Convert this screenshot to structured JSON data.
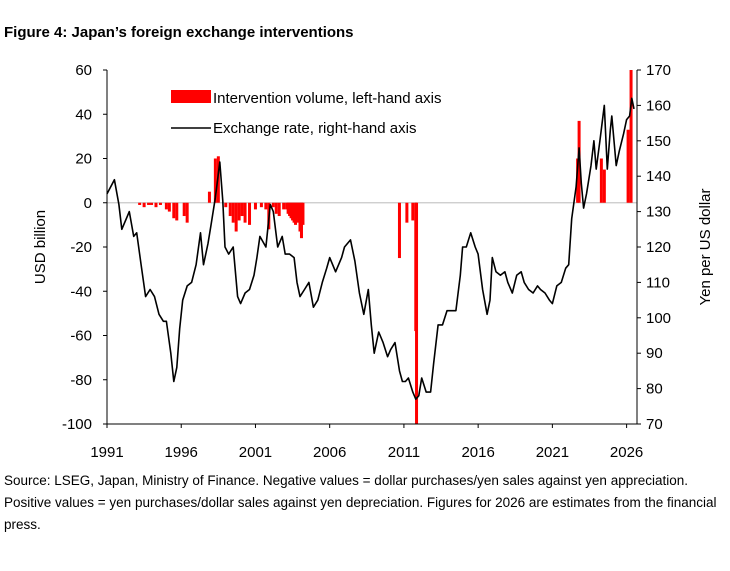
{
  "figure_title": "Figure 4: Japan’s foreign exchange interventions",
  "source_note": "Source: LSEG, Japan, Ministry of Finance. Negative values = dollar purchases/yen sales against yen appreciation. Positive values = yen purchases/dollar sales against yen depreciation. Figures for 2026 are estimates from the financial press.",
  "chart_data": {
    "type": "bar",
    "ylabel_left": "USD billion",
    "ylabel_right": "Yen per US dollar",
    "ylim_left": [
      -100,
      60
    ],
    "ylim_right": [
      70,
      170
    ],
    "xlim": [
      1991,
      2026.7
    ],
    "yticks_left": [
      "60",
      "40",
      "20",
      "0",
      "-20",
      "-40",
      "-60",
      "-80",
      "-100"
    ],
    "yticks_right": [
      "170",
      "160",
      "150",
      "140",
      "130",
      "120",
      "110",
      "100",
      "90",
      "80",
      "70"
    ],
    "xticks": [
      "1991",
      "1996",
      "2001",
      "2006",
      "2011",
      "2016",
      "2021",
      "2026"
    ],
    "legend_placement": "top-left",
    "legend": {
      "bars": "Intervention volume, left-hand axis",
      "line": "Exchange rate, right-hand axis"
    },
    "colors": {
      "bars": "#ff0000",
      "line": "#000000",
      "zero_line": "#c8c8c8"
    },
    "series": [
      {
        "name": "Intervention volume, left-hand axis",
        "type": "bar",
        "points": [
          [
            1993.2,
            -1
          ],
          [
            1993.5,
            -2
          ],
          [
            1993.8,
            -1
          ],
          [
            1994.0,
            -1
          ],
          [
            1994.3,
            -2
          ],
          [
            1994.6,
            -1
          ],
          [
            1995.0,
            -3
          ],
          [
            1995.2,
            -4
          ],
          [
            1995.5,
            -7
          ],
          [
            1995.7,
            -8
          ],
          [
            1996.2,
            -6
          ],
          [
            1996.4,
            -9
          ],
          [
            1997.9,
            5
          ],
          [
            1998.3,
            20
          ],
          [
            1998.5,
            21
          ],
          [
            1999.0,
            -2
          ],
          [
            1999.3,
            -6
          ],
          [
            1999.5,
            -9
          ],
          [
            1999.7,
            -13
          ],
          [
            1999.9,
            -8
          ],
          [
            2000.1,
            -6
          ],
          [
            2000.3,
            -9
          ],
          [
            2000.6,
            -10
          ],
          [
            2001.0,
            -3
          ],
          [
            2001.4,
            -2
          ],
          [
            2001.7,
            -3
          ],
          [
            2001.9,
            -12
          ],
          [
            2002.2,
            -2
          ],
          [
            2002.4,
            -5
          ],
          [
            2002.6,
            -6
          ],
          [
            2002.9,
            -3
          ],
          [
            2003.1,
            -3
          ],
          [
            2003.2,
            -5
          ],
          [
            2003.3,
            -6
          ],
          [
            2003.4,
            -7
          ],
          [
            2003.5,
            -8
          ],
          [
            2003.6,
            -9
          ],
          [
            2003.7,
            -10
          ],
          [
            2003.8,
            -7
          ],
          [
            2003.9,
            -9
          ],
          [
            2004.0,
            -13
          ],
          [
            2004.1,
            -16
          ],
          [
            2004.2,
            -10
          ],
          [
            2010.7,
            -25
          ],
          [
            2011.2,
            -9
          ],
          [
            2011.6,
            -8
          ],
          [
            2011.8,
            -58
          ],
          [
            2011.85,
            -100
          ],
          [
            2022.7,
            20
          ],
          [
            2022.8,
            37
          ],
          [
            2024.3,
            20
          ],
          [
            2024.5,
            15
          ],
          [
            2026.1,
            33
          ],
          [
            2026.3,
            60
          ]
        ]
      },
      {
        "name": "Exchange rate, right-hand axis",
        "type": "line",
        "axis": "right",
        "points": [
          [
            1991.0,
            135
          ],
          [
            1991.5,
            139
          ],
          [
            1991.8,
            132
          ],
          [
            1992.0,
            125
          ],
          [
            1992.5,
            130
          ],
          [
            1992.8,
            123
          ],
          [
            1993.0,
            124
          ],
          [
            1993.3,
            115
          ],
          [
            1993.6,
            106
          ],
          [
            1993.9,
            108
          ],
          [
            1994.2,
            106
          ],
          [
            1994.5,
            101
          ],
          [
            1994.8,
            99
          ],
          [
            1995.0,
            99
          ],
          [
            1995.3,
            90
          ],
          [
            1995.5,
            82
          ],
          [
            1995.7,
            86
          ],
          [
            1995.9,
            97
          ],
          [
            1996.1,
            105
          ],
          [
            1996.4,
            109
          ],
          [
            1996.7,
            110
          ],
          [
            1997.0,
            115
          ],
          [
            1997.3,
            124
          ],
          [
            1997.5,
            115
          ],
          [
            1997.8,
            121
          ],
          [
            1998.0,
            126
          ],
          [
            1998.3,
            134
          ],
          [
            1998.6,
            144
          ],
          [
            1998.8,
            133
          ],
          [
            1998.95,
            120
          ],
          [
            1999.2,
            118
          ],
          [
            1999.5,
            120
          ],
          [
            1999.8,
            106
          ],
          [
            2000.0,
            104
          ],
          [
            2000.3,
            107
          ],
          [
            2000.6,
            108
          ],
          [
            2000.9,
            112
          ],
          [
            2001.1,
            117
          ],
          [
            2001.3,
            123
          ],
          [
            2001.7,
            120
          ],
          [
            2002.0,
            132
          ],
          [
            2002.2,
            130
          ],
          [
            2002.5,
            120
          ],
          [
            2002.8,
            123
          ],
          [
            2003.0,
            118
          ],
          [
            2003.3,
            118
          ],
          [
            2003.6,
            117
          ],
          [
            2003.8,
            110
          ],
          [
            2004.0,
            106
          ],
          [
            2004.3,
            108
          ],
          [
            2004.6,
            110
          ],
          [
            2004.9,
            103
          ],
          [
            2005.2,
            105
          ],
          [
            2005.5,
            110
          ],
          [
            2005.8,
            114
          ],
          [
            2006.0,
            117
          ],
          [
            2006.4,
            113
          ],
          [
            2006.8,
            117
          ],
          [
            2007.0,
            120
          ],
          [
            2007.4,
            122
          ],
          [
            2007.7,
            116
          ],
          [
            2008.0,
            107
          ],
          [
            2008.3,
            101
          ],
          [
            2008.6,
            108
          ],
          [
            2008.8,
            98
          ],
          [
            2009.0,
            90
          ],
          [
            2009.3,
            96
          ],
          [
            2009.6,
            93
          ],
          [
            2009.9,
            89
          ],
          [
            2010.1,
            91
          ],
          [
            2010.4,
            93
          ],
          [
            2010.7,
            85
          ],
          [
            2010.9,
            82
          ],
          [
            2011.1,
            82
          ],
          [
            2011.3,
            83
          ],
          [
            2011.6,
            79
          ],
          [
            2011.8,
            77
          ],
          [
            2012.0,
            78
          ],
          [
            2012.2,
            83
          ],
          [
            2012.5,
            79
          ],
          [
            2012.8,
            79
          ],
          [
            2013.0,
            87
          ],
          [
            2013.3,
            98
          ],
          [
            2013.6,
            98
          ],
          [
            2013.9,
            102
          ],
          [
            2014.2,
            102
          ],
          [
            2014.5,
            102
          ],
          [
            2014.8,
            112
          ],
          [
            2014.95,
            120
          ],
          [
            2015.2,
            120
          ],
          [
            2015.5,
            124
          ],
          [
            2015.8,
            120
          ],
          [
            2016.0,
            118
          ],
          [
            2016.3,
            108
          ],
          [
            2016.6,
            101
          ],
          [
            2016.8,
            105
          ],
          [
            2016.95,
            117
          ],
          [
            2017.2,
            113
          ],
          [
            2017.5,
            112
          ],
          [
            2017.8,
            113
          ],
          [
            2018.0,
            110
          ],
          [
            2018.3,
            107
          ],
          [
            2018.6,
            112
          ],
          [
            2018.9,
            113
          ],
          [
            2019.1,
            110
          ],
          [
            2019.4,
            108
          ],
          [
            2019.7,
            107
          ],
          [
            2020.0,
            109
          ],
          [
            2020.2,
            108
          ],
          [
            2020.5,
            107
          ],
          [
            2020.8,
            105
          ],
          [
            2021.0,
            104
          ],
          [
            2021.3,
            109
          ],
          [
            2021.6,
            110
          ],
          [
            2021.9,
            114
          ],
          [
            2022.1,
            115
          ],
          [
            2022.3,
            128
          ],
          [
            2022.6,
            137
          ],
          [
            2022.8,
            148
          ],
          [
            2022.95,
            138
          ],
          [
            2023.1,
            131
          ],
          [
            2023.3,
            135
          ],
          [
            2023.6,
            143
          ],
          [
            2023.8,
            150
          ],
          [
            2023.95,
            142
          ],
          [
            2024.2,
            150
          ],
          [
            2024.5,
            160
          ],
          [
            2024.7,
            142
          ],
          [
            2024.9,
            153
          ],
          [
            2025.0,
            157
          ],
          [
            2025.3,
            143
          ],
          [
            2025.5,
            147
          ],
          [
            2025.8,
            152
          ],
          [
            2026.0,
            156
          ],
          [
            2026.2,
            157
          ],
          [
            2026.35,
            162
          ],
          [
            2026.5,
            159
          ]
        ]
      }
    ]
  }
}
